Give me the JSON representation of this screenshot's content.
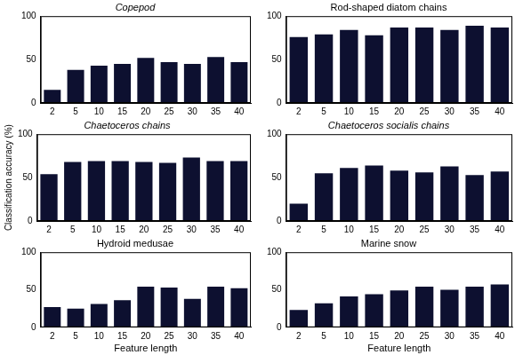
{
  "chart_data": [
    {
      "type": "bar",
      "title": "Copepod",
      "categories": [
        "2",
        "5",
        "10",
        "15",
        "20",
        "25",
        "30",
        "35",
        "40"
      ],
      "values": [
        15,
        38,
        43,
        45,
        52,
        47,
        45,
        53,
        47
      ],
      "color": "#0d1030",
      "ylim": [
        0,
        100
      ],
      "yticks": [
        0,
        50,
        100
      ],
      "grid": false
    },
    {
      "type": "bar",
      "title": "Rod-shaped diatom chains",
      "categories": [
        "2",
        "5",
        "10",
        "15",
        "20",
        "25",
        "30",
        "35",
        "40"
      ],
      "values": [
        76,
        79,
        84,
        78,
        87,
        87,
        84,
        89,
        87
      ],
      "color": "#0d1030",
      "ylim": [
        0,
        100
      ],
      "yticks": [
        0,
        50,
        100
      ],
      "grid": false
    },
    {
      "type": "bar",
      "title": "Chaetoceros chains",
      "ylabel": "Classification accuracy (%)",
      "categories": [
        "2",
        "5",
        "10",
        "15",
        "20",
        "25",
        "30",
        "35",
        "40"
      ],
      "values": [
        54,
        68,
        69,
        69,
        68,
        67,
        73,
        69,
        69
      ],
      "color": "#0d1030",
      "ylim": [
        0,
        100
      ],
      "yticks": [
        0,
        50,
        100
      ],
      "grid": false
    },
    {
      "type": "bar",
      "title": "Chaetoceros socialis chains",
      "categories": [
        "2",
        "5",
        "10",
        "15",
        "20",
        "25",
        "30",
        "35",
        "40"
      ],
      "values": [
        20,
        55,
        61,
        64,
        58,
        56,
        63,
        53,
        57
      ],
      "color": "#0d1030",
      "ylim": [
        0,
        100
      ],
      "yticks": [
        0,
        50,
        100
      ],
      "grid": false
    },
    {
      "type": "bar",
      "title": "Hydroid medusae",
      "xlabel": "Feature length",
      "categories": [
        "2",
        "5",
        "10",
        "15",
        "20",
        "25",
        "30",
        "35",
        "40"
      ],
      "values": [
        27,
        25,
        31,
        36,
        54,
        53,
        38,
        54,
        52
      ],
      "color": "#0d1030",
      "ylim": [
        0,
        100
      ],
      "yticks": [
        0,
        50,
        100
      ],
      "grid": false
    },
    {
      "type": "bar",
      "title": "Marine snow",
      "xlabel": "Feature length",
      "categories": [
        "2",
        "5",
        "10",
        "15",
        "20",
        "25",
        "30",
        "35",
        "40"
      ],
      "values": [
        23,
        32,
        41,
        44,
        49,
        54,
        50,
        54,
        57
      ],
      "color": "#0d1030",
      "ylim": [
        0,
        100
      ],
      "yticks": [
        0,
        50,
        100
      ],
      "grid": false
    }
  ]
}
